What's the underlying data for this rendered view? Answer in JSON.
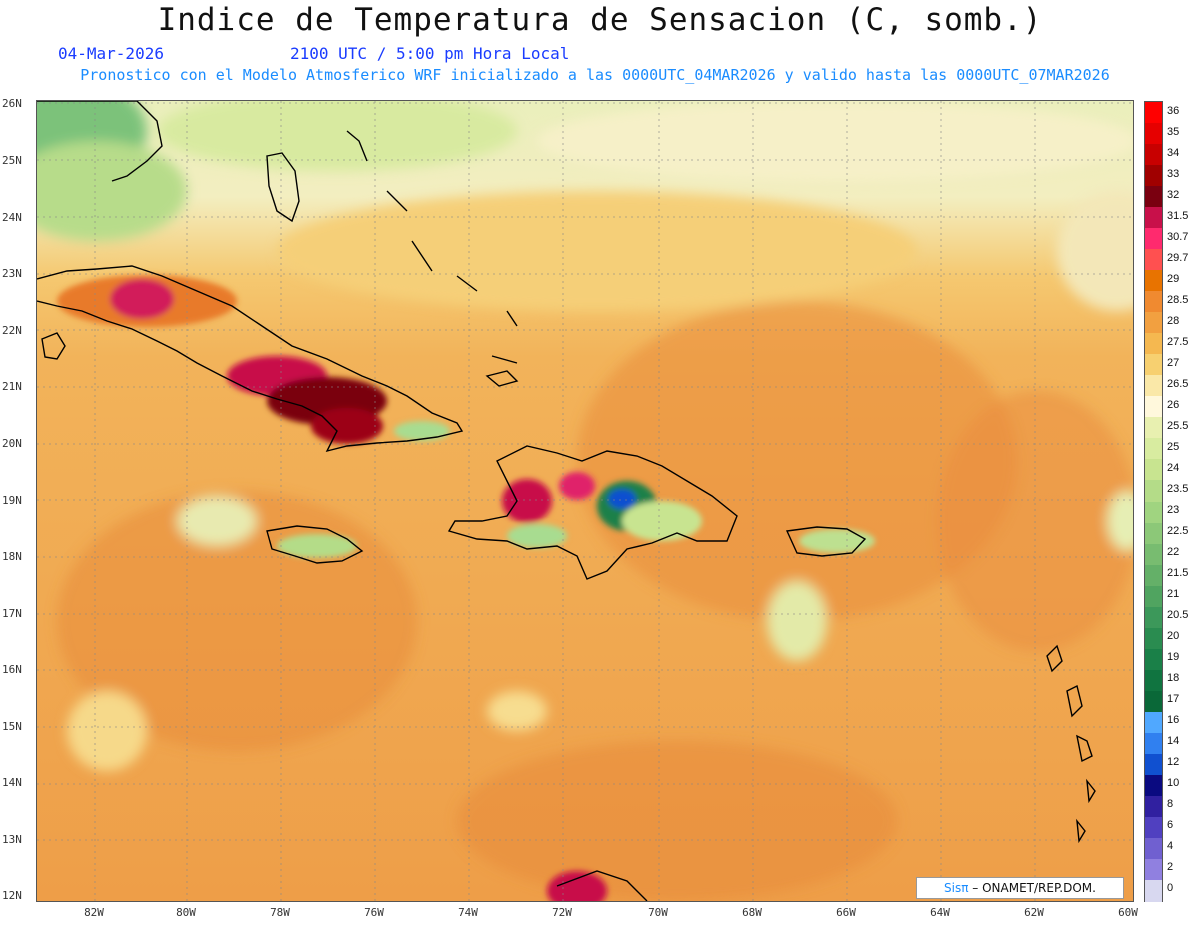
{
  "title": "Indice de Temperatura de Sensacion (C, somb.)",
  "date": "04-Mar-2026",
  "time": "2100 UTC / 5:00 pm Hora Local",
  "model_info": "Pronostico con el Modelo Atmosferico WRF inicializado a las 0000UTC_04MAR2026 y valido hasta las  0000UTC_07MAR2026",
  "lat_labels": [
    "26N",
    "25N",
    "24N",
    "23N",
    "22N",
    "21N",
    "20N",
    "19N",
    "18N",
    "17N",
    "16N",
    "15N",
    "14N",
    "13N",
    "12N"
  ],
  "lon_labels": [
    "82W",
    "80W",
    "78W",
    "76W",
    "74W",
    "72W",
    "70W",
    "68W",
    "66W",
    "64W",
    "62W",
    "60W"
  ],
  "colorbar": {
    "labels": [
      "36",
      "35",
      "34",
      "33",
      "32",
      "31.5",
      "30.7",
      "29.7",
      "29",
      "28.5",
      "28",
      "27.5",
      "27",
      "26.5",
      "26",
      "25.5",
      "25",
      "24",
      "23.5",
      "23",
      "22.5",
      "22",
      "21.5",
      "21",
      "20.5",
      "20",
      "19",
      "18",
      "17",
      "16",
      "14",
      "12",
      "10",
      "8",
      "6",
      "4",
      "2",
      "0"
    ],
    "colors": [
      "#ff0000",
      "#e60000",
      "#c80000",
      "#a00000",
      "#7a0010",
      "#c8104a",
      "#ff2a6e",
      "#ff5050",
      "#e87300",
      "#f08a30",
      "#f2a040",
      "#f5b850",
      "#f7d070",
      "#fae8a8",
      "#fff8dc",
      "#e8f0b0",
      "#d8eca0",
      "#c8e490",
      "#b4dc88",
      "#a0d480",
      "#8cc878",
      "#78bc70",
      "#64b068",
      "#50a460",
      "#3c985a",
      "#2a8c50",
      "#1a8048",
      "#107440",
      "#0a6838",
      "#50a8ff",
      "#3080f0",
      "#1050d0",
      "#0a0a80",
      "#3020a0",
      "#5040c0",
      "#7060d0",
      "#9080e0",
      "#d8d8f0"
    ]
  },
  "credit": {
    "prefix": "Sis",
    "pi": "π",
    "text": "– ONAMET/REP.DOM."
  }
}
